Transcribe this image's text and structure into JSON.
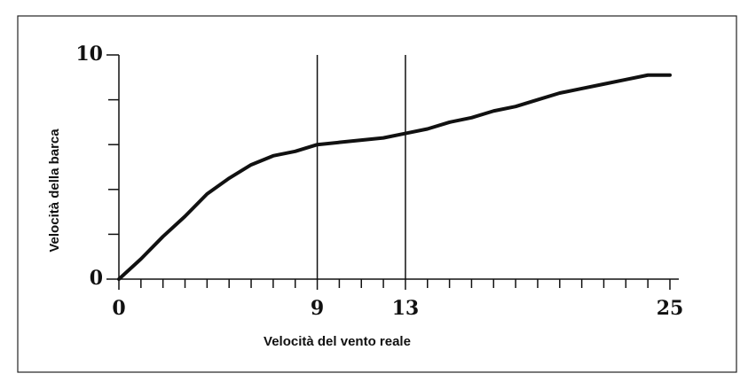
{
  "chart_data": {
    "type": "line",
    "xlabel": "Velocità del vento reale",
    "ylabel": "Velocità della barca",
    "x": [
      0,
      1,
      2,
      3,
      4,
      5,
      6,
      7,
      8,
      9,
      10,
      11,
      12,
      13,
      14,
      15,
      16,
      17,
      18,
      19,
      20,
      21,
      22,
      23,
      24,
      25
    ],
    "series": [
      {
        "color": "#111111",
        "values": [
          0,
          0.9,
          1.9,
          2.8,
          3.8,
          4.5,
          5.1,
          5.5,
          5.7,
          6.0,
          6.1,
          6.2,
          6.3,
          6.5,
          6.7,
          7.0,
          7.2,
          7.5,
          7.7,
          8.0,
          8.3,
          8.5,
          8.7,
          8.9,
          9.1,
          9.1
        ]
      }
    ],
    "xlim": [
      0,
      25
    ],
    "ylim": [
      0,
      10
    ],
    "xticks": [
      0,
      9,
      13,
      25
    ],
    "yticks": [
      0,
      10
    ],
    "xminorticks": [
      1,
      2,
      3,
      4,
      5,
      6,
      7,
      8,
      10,
      11,
      12,
      14,
      15,
      16,
      17,
      18,
      19,
      20,
      21,
      22,
      23,
      24
    ],
    "yminorticks": [
      2,
      4,
      6,
      8
    ],
    "vlines": [
      9,
      13
    ]
  }
}
